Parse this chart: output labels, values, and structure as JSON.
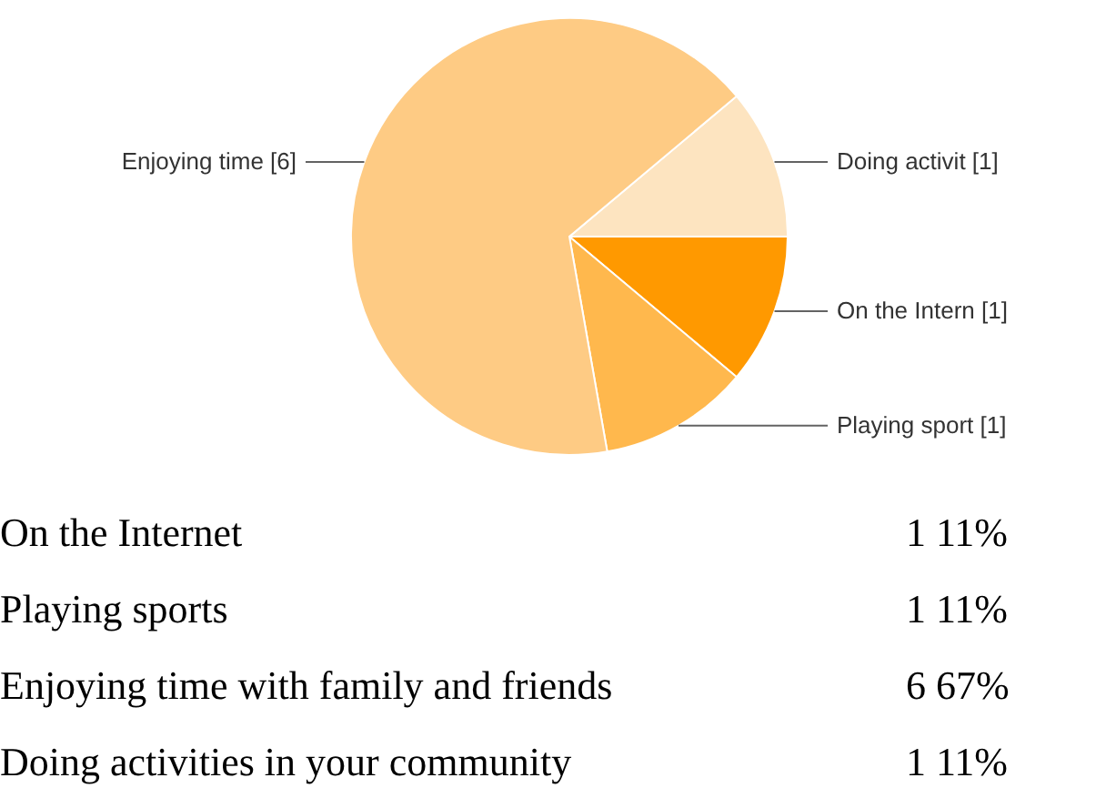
{
  "chart_data": {
    "type": "pie",
    "categories": [
      "Doing activit [1]",
      "On the Intern [1]",
      "Playing sport [1]",
      "Enjoying time [6]"
    ],
    "values": [
      1,
      1,
      1,
      6
    ],
    "colors": [
      "#fde4c0",
      "#ff9900",
      "#ffb84d",
      "#fecb84"
    ],
    "annotations": [
      "On the Internet",
      "1 11%",
      "Playing sports",
      "1 11%",
      "Enjoying time with family and friends",
      "6 67%",
      "Doing activities in your community",
      "1 11%"
    ]
  }
}
